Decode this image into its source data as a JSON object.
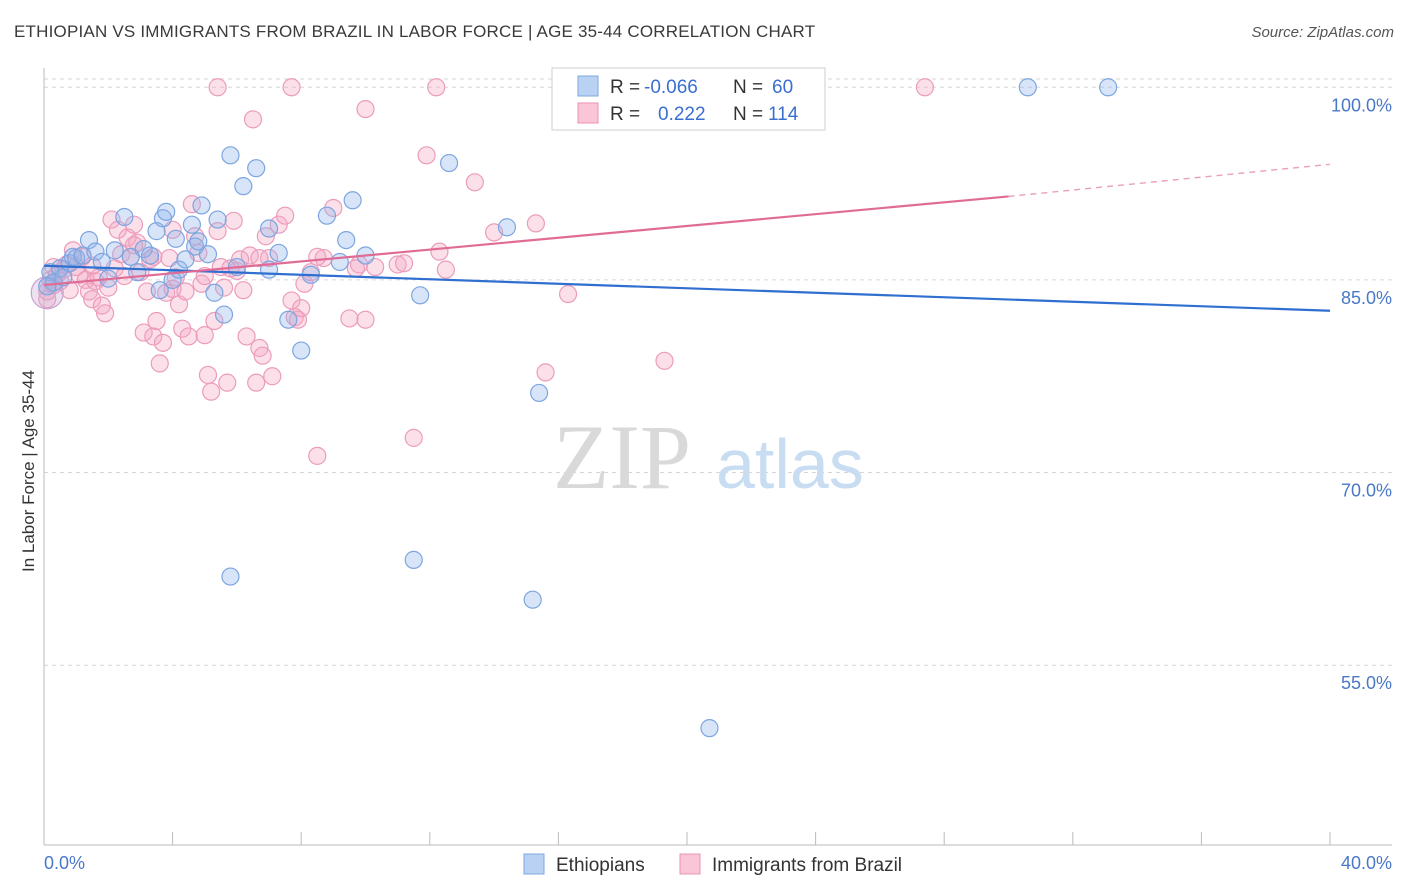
{
  "header": {
    "title": "ETHIOPIAN VS IMMIGRANTS FROM BRAZIL IN LABOR FORCE | AGE 35-44 CORRELATION CHART",
    "source": "Source: ZipAtlas.com"
  },
  "watermark": {
    "zip": "ZIP",
    "atlas": "atlas"
  },
  "legend": {
    "r_label": "R =",
    "n_label": "N =",
    "rows": [
      {
        "series": "Ethiopians",
        "r": "-0.066",
        "n": "60"
      },
      {
        "series": "Immigrants from Brazil",
        "r": "0.222",
        "n": "114"
      }
    ]
  },
  "chart_data": {
    "type": "scatter",
    "title": "ETHIOPIAN VS IMMIGRANTS FROM BRAZIL IN LABOR FORCE | AGE 35-44 CORRELATION CHART",
    "ylabel": "In Labor Force | Age 35-44",
    "xlabel": "",
    "xlim": [
      0,
      40
    ],
    "ylim": [
      41,
      101.5
    ],
    "x_tick_labels": [
      "0.0%",
      "40.0%"
    ],
    "y_ticks": [
      {
        "value": 100,
        "label": "100.0%"
      },
      {
        "value": 85,
        "label": "85.0%"
      },
      {
        "value": 70,
        "label": "70.0%"
      },
      {
        "value": 55,
        "label": "55.0%"
      }
    ],
    "grid": "horizontal dashed",
    "legend_placement": "top-center",
    "colors": {
      "Ethiopians": "#8fb4ea",
      "Immigrants from Brazil": "#f4a6c2",
      "ethiopian_line": "#2f6fcf",
      "brazil_line": "#e06c96"
    },
    "series": [
      {
        "name": "Ethiopians",
        "r": -0.066,
        "n": 60,
        "trend": {
          "x": [
            0,
            40
          ],
          "y": [
            86.1,
            82.6
          ]
        },
        "points": [
          [
            0.2,
            85.6
          ],
          [
            0.3,
            84.8
          ],
          [
            0.5,
            85.9
          ],
          [
            0.6,
            85.2
          ],
          [
            0.8,
            86.3
          ],
          [
            0.9,
            86.8
          ],
          [
            1.0,
            86.7
          ],
          [
            1.2,
            86.9
          ],
          [
            1.4,
            88.1
          ],
          [
            1.6,
            87.2
          ],
          [
            1.8,
            86.4
          ],
          [
            2.0,
            85.1
          ],
          [
            2.2,
            87.3
          ],
          [
            2.5,
            89.9
          ],
          [
            2.7,
            86.8
          ],
          [
            2.9,
            85.6
          ],
          [
            3.1,
            87.4
          ],
          [
            3.3,
            86.9
          ],
          [
            3.5,
            88.8
          ],
          [
            3.6,
            84.2
          ],
          [
            3.7,
            89.8
          ],
          [
            3.8,
            90.3
          ],
          [
            4.0,
            85.0
          ],
          [
            4.1,
            88.2
          ],
          [
            4.2,
            85.8
          ],
          [
            4.4,
            86.6
          ],
          [
            4.6,
            89.3
          ],
          [
            4.7,
            87.6
          ],
          [
            4.8,
            88.0
          ],
          [
            4.9,
            90.8
          ],
          [
            5.1,
            87.0
          ],
          [
            5.3,
            84.0
          ],
          [
            5.4,
            89.7
          ],
          [
            5.6,
            82.3
          ],
          [
            5.8,
            94.7
          ],
          [
            6.0,
            86.0
          ],
          [
            6.2,
            92.3
          ],
          [
            6.6,
            93.7
          ],
          [
            7.0,
            89.0
          ],
          [
            7.0,
            85.8
          ],
          [
            7.3,
            87.1
          ],
          [
            7.6,
            81.9
          ],
          [
            8.0,
            79.5
          ],
          [
            8.3,
            85.4
          ],
          [
            8.8,
            90.0
          ],
          [
            9.2,
            86.4
          ],
          [
            9.4,
            88.1
          ],
          [
            9.6,
            91.2
          ],
          [
            10.0,
            86.9
          ],
          [
            11.7,
            83.8
          ],
          [
            12.6,
            94.1
          ],
          [
            14.4,
            89.1
          ],
          [
            15.4,
            76.2
          ],
          [
            5.8,
            61.9
          ],
          [
            11.5,
            63.2
          ],
          [
            15.2,
            60.1
          ],
          [
            20.7,
            50.1
          ],
          [
            30.6,
            100.0
          ],
          [
            33.1,
            100.0
          ],
          [
            0.1,
            84.5
          ]
        ]
      },
      {
        "name": "Immigrants from Brazil",
        "r": 0.222,
        "n": 114,
        "trend": {
          "x": [
            0,
            30
          ],
          "y": [
            84.6,
            91.5
          ]
        },
        "trend_dashed": {
          "x": [
            30,
            40
          ],
          "y": [
            91.5,
            94.0
          ]
        },
        "points": [
          [
            0.1,
            84.1
          ],
          [
            0.2,
            85.0
          ],
          [
            0.3,
            86.0
          ],
          [
            0.4,
            85.4
          ],
          [
            0.5,
            84.9
          ],
          [
            0.6,
            85.8
          ],
          [
            0.7,
            86.2
          ],
          [
            0.8,
            84.2
          ],
          [
            0.9,
            87.3
          ],
          [
            1.0,
            86.0
          ],
          [
            1.1,
            85.4
          ],
          [
            1.2,
            86.8
          ],
          [
            1.3,
            85.0
          ],
          [
            1.4,
            84.1
          ],
          [
            1.5,
            83.5
          ],
          [
            1.6,
            84.9
          ],
          [
            1.7,
            85.2
          ],
          [
            1.8,
            83.0
          ],
          [
            1.9,
            82.4
          ],
          [
            2.0,
            84.4
          ],
          [
            2.1,
            89.7
          ],
          [
            2.2,
            85.9
          ],
          [
            2.3,
            88.9
          ],
          [
            2.4,
            87.0
          ],
          [
            2.5,
            85.3
          ],
          [
            2.6,
            88.3
          ],
          [
            2.7,
            86.8
          ],
          [
            2.8,
            89.3
          ],
          [
            2.9,
            87.9
          ],
          [
            3.0,
            85.6
          ],
          [
            3.1,
            80.9
          ],
          [
            3.2,
            84.1
          ],
          [
            3.3,
            86.6
          ],
          [
            3.4,
            80.6
          ],
          [
            3.5,
            81.8
          ],
          [
            3.6,
            78.5
          ],
          [
            3.7,
            80.1
          ],
          [
            3.8,
            84.0
          ],
          [
            3.9,
            86.7
          ],
          [
            4.0,
            84.3
          ],
          [
            4.1,
            85.2
          ],
          [
            4.2,
            83.1
          ],
          [
            4.3,
            81.2
          ],
          [
            4.4,
            84.1
          ],
          [
            4.5,
            80.6
          ],
          [
            4.6,
            90.9
          ],
          [
            4.7,
            88.4
          ],
          [
            4.8,
            87.1
          ],
          [
            4.9,
            84.7
          ],
          [
            5.0,
            80.7
          ],
          [
            5.1,
            77.6
          ],
          [
            5.2,
            76.3
          ],
          [
            5.3,
            81.8
          ],
          [
            5.4,
            88.8
          ],
          [
            5.5,
            86.0
          ],
          [
            5.6,
            84.4
          ],
          [
            5.7,
            77.0
          ],
          [
            5.8,
            85.9
          ],
          [
            5.9,
            89.6
          ],
          [
            6.0,
            85.7
          ],
          [
            6.1,
            86.6
          ],
          [
            6.2,
            84.2
          ],
          [
            6.3,
            80.6
          ],
          [
            6.4,
            86.9
          ],
          [
            6.5,
            97.5
          ],
          [
            6.6,
            77.0
          ],
          [
            6.7,
            79.7
          ],
          [
            6.8,
            79.1
          ],
          [
            6.9,
            88.4
          ],
          [
            7.0,
            86.7
          ],
          [
            7.1,
            77.5
          ],
          [
            7.3,
            89.3
          ],
          [
            7.5,
            90.0
          ],
          [
            7.7,
            83.4
          ],
          [
            7.8,
            82.1
          ],
          [
            7.9,
            81.9
          ],
          [
            8.0,
            82.8
          ],
          [
            8.1,
            84.7
          ],
          [
            8.3,
            85.6
          ],
          [
            8.5,
            71.3
          ],
          [
            8.7,
            86.7
          ],
          [
            9.0,
            90.6
          ],
          [
            9.5,
            82.0
          ],
          [
            9.8,
            86.2
          ],
          [
            10.0,
            81.9
          ],
          [
            10.3,
            86.0
          ],
          [
            11.0,
            86.2
          ],
          [
            11.5,
            72.7
          ],
          [
            11.9,
            94.7
          ],
          [
            12.3,
            87.2
          ],
          [
            12.5,
            85.8
          ],
          [
            13.4,
            92.6
          ],
          [
            14.0,
            88.7
          ],
          [
            15.3,
            89.4
          ],
          [
            15.6,
            77.8
          ],
          [
            16.3,
            83.9
          ],
          [
            19.3,
            78.7
          ],
          [
            5.4,
            100.0
          ],
          [
            7.7,
            100.0
          ],
          [
            10.0,
            98.3
          ],
          [
            12.2,
            100.0
          ],
          [
            21.5,
            100.0
          ],
          [
            27.4,
            100.0
          ],
          [
            3.4,
            86.8
          ],
          [
            1.5,
            86.1
          ],
          [
            2.8,
            87.7
          ],
          [
            4.0,
            88.9
          ],
          [
            5.0,
            85.3
          ],
          [
            6.7,
            86.7
          ],
          [
            8.5,
            86.8
          ],
          [
            9.7,
            85.9
          ],
          [
            11.2,
            86.3
          ],
          [
            0.3,
            84.6
          ],
          [
            0.1,
            83.5
          ]
        ]
      }
    ]
  }
}
